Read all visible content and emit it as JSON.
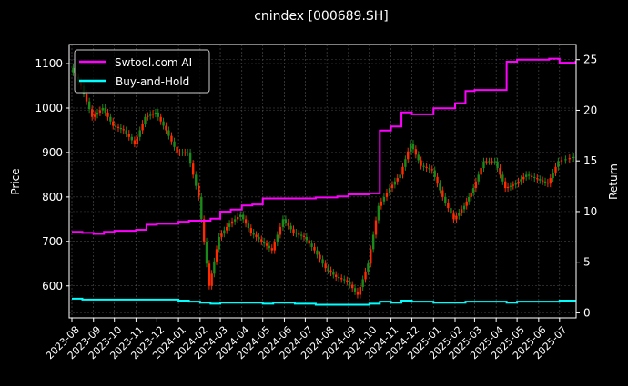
{
  "chart_data": {
    "type": "line",
    "title": "cnindex [000689.SH]",
    "ylabel_left": "Price",
    "ylabel_right": "Return",
    "ylim_left": [
      528,
      1143
    ],
    "ylim_right": [
      -0.5,
      26.5
    ],
    "yticks_left": [
      600,
      700,
      800,
      900,
      1000,
      1100
    ],
    "yticks_right": [
      0,
      5,
      10,
      15,
      20,
      25
    ],
    "grid": true,
    "legend_placement": "top-left",
    "xticks": [
      "2023-08",
      "2023-09",
      "2023-10",
      "2023-11",
      "2023-12",
      "2024-01",
      "2024-02",
      "2024-03",
      "2024-04",
      "2024-05",
      "2024-06",
      "2024-07",
      "2024-08",
      "2024-09",
      "2024-10",
      "2024-11",
      "2024-12",
      "2025-01",
      "2025-02",
      "2025-03",
      "2025-04",
      "2025-05",
      "2025-06",
      "2025-07"
    ],
    "x": [
      "2023-08-01",
      "2023-08-16",
      "2023-09-01",
      "2023-09-16",
      "2023-10-01",
      "2023-10-16",
      "2023-11-01",
      "2023-11-16",
      "2023-12-01",
      "2023-12-16",
      "2024-01-01",
      "2024-01-16",
      "2024-02-01",
      "2024-02-16",
      "2024-03-01",
      "2024-03-16",
      "2024-04-01",
      "2024-04-16",
      "2024-05-01",
      "2024-05-16",
      "2024-06-01",
      "2024-06-16",
      "2024-07-01",
      "2024-07-16",
      "2024-08-01",
      "2024-08-16",
      "2024-09-01",
      "2024-09-16",
      "2024-10-01",
      "2024-10-16",
      "2024-11-01",
      "2024-11-16",
      "2024-12-01",
      "2024-12-16",
      "2025-01-01",
      "2025-01-16",
      "2025-02-01",
      "2025-02-16",
      "2025-03-01",
      "2025-03-16",
      "2025-04-01",
      "2025-04-16",
      "2025-05-01",
      "2025-05-16",
      "2025-06-01",
      "2025-06-16",
      "2025-07-01",
      "2025-07-24"
    ],
    "price_close": [
      1090,
      1050,
      980,
      1000,
      960,
      950,
      920,
      980,
      990,
      950,
      900,
      900,
      800,
      600,
      710,
      740,
      760,
      720,
      700,
      680,
      750,
      720,
      710,
      680,
      640,
      620,
      610,
      580,
      650,
      780,
      820,
      850,
      920,
      870,
      860,
      800,
      750,
      780,
      820,
      880,
      880,
      820,
      830,
      850,
      840,
      830,
      880,
      890
    ],
    "candle_colors": {
      "up": "#ff2a00",
      "down": "#1a8a1a"
    },
    "series": [
      {
        "name": "Swtool.com AI",
        "color": "#ff00ff",
        "axis": "right",
        "values": [
          8.0,
          7.9,
          7.8,
          8.0,
          8.1,
          8.1,
          8.2,
          8.7,
          8.8,
          8.8,
          9.0,
          9.1,
          9.1,
          9.3,
          10.0,
          10.2,
          10.6,
          10.7,
          11.3,
          11.3,
          11.3,
          11.3,
          11.3,
          11.4,
          11.4,
          11.5,
          11.7,
          11.7,
          11.8,
          18.0,
          18.4,
          19.8,
          19.6,
          19.6,
          20.2,
          20.2,
          20.7,
          21.9,
          22.0,
          22.0,
          22.0,
          24.8,
          25.0,
          25.0,
          25.0,
          25.1,
          24.7,
          24.9
        ]
      },
      {
        "name": "Buy-and-Hold",
        "color": "#00ffff",
        "axis": "right",
        "values": [
          1.4,
          1.3,
          1.3,
          1.3,
          1.3,
          1.3,
          1.3,
          1.3,
          1.3,
          1.3,
          1.2,
          1.1,
          1.0,
          0.9,
          1.0,
          1.0,
          1.0,
          1.0,
          0.9,
          1.0,
          1.0,
          0.9,
          0.9,
          0.8,
          0.8,
          0.8,
          0.8,
          0.8,
          0.9,
          1.1,
          1.0,
          1.2,
          1.1,
          1.1,
          1.0,
          1.0,
          1.0,
          1.1,
          1.1,
          1.1,
          1.1,
          1.0,
          1.1,
          1.1,
          1.1,
          1.1,
          1.2,
          1.2
        ]
      }
    ]
  }
}
